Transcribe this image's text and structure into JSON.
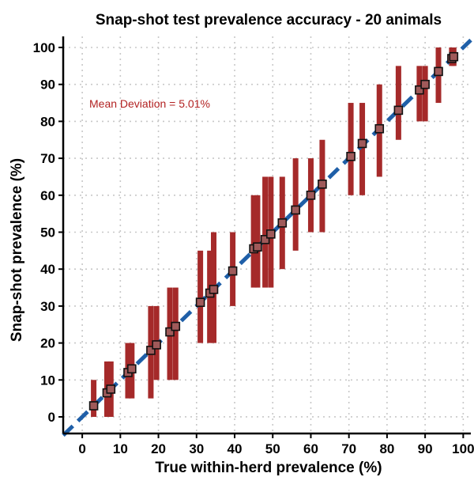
{
  "chart_data": {
    "type": "scatter",
    "title": "Snap-shot test prevalence accuracy - 20 animals",
    "xlabel": "True within-herd prevalence (%)",
    "ylabel": "Snap-shot prevalence (%)",
    "xlim": [
      -5,
      102
    ],
    "ylim": [
      -4.5,
      103
    ],
    "xticks": [
      0,
      10,
      20,
      30,
      40,
      50,
      60,
      70,
      80,
      90,
      100
    ],
    "yticks": [
      0,
      10,
      20,
      30,
      40,
      50,
      60,
      70,
      80,
      90,
      100
    ],
    "xtick_labels": [
      "0",
      "10",
      "20",
      "30",
      "40",
      "50",
      "60",
      "70",
      "80",
      "90",
      "100"
    ],
    "ytick_labels": [
      "0",
      "10",
      "20",
      "30",
      "40",
      "50",
      "60",
      "70",
      "80",
      "90",
      "100"
    ],
    "grid": true,
    "annotation": "Mean Deviation = 5.01%",
    "colors": {
      "bar": "#a52a2a",
      "point_fill": "#a05a5a",
      "point_edge": "#111111",
      "reference_line": "#1f5fa8",
      "annotation": "#b22222",
      "grid": "#c8c8c8"
    },
    "reference_line": {
      "label": "y = x",
      "from": [
        -5,
        -5
      ],
      "to": [
        102,
        102
      ]
    },
    "points": [
      {
        "x": 3,
        "y": 3,
        "low": 0,
        "high": 10
      },
      {
        "x": 6.5,
        "y": 6.5,
        "low": 0,
        "high": 15
      },
      {
        "x": 7.5,
        "y": 7.5,
        "low": 0,
        "high": 15
      },
      {
        "x": 12,
        "y": 12,
        "low": 5,
        "high": 20
      },
      {
        "x": 13,
        "y": 13,
        "low": 5,
        "high": 20
      },
      {
        "x": 18,
        "y": 18,
        "low": 5,
        "high": 30
      },
      {
        "x": 19.5,
        "y": 19.5,
        "low": 10,
        "high": 30
      },
      {
        "x": 23,
        "y": 23,
        "low": 10,
        "high": 35
      },
      {
        "x": 24.5,
        "y": 24.5,
        "low": 10,
        "high": 35
      },
      {
        "x": 31,
        "y": 31,
        "low": 20,
        "high": 45
      },
      {
        "x": 33.5,
        "y": 33.5,
        "low": 20,
        "high": 45
      },
      {
        "x": 34.5,
        "y": 34.5,
        "low": 20,
        "high": 50
      },
      {
        "x": 39.5,
        "y": 39.5,
        "low": 30,
        "high": 50
      },
      {
        "x": 45,
        "y": 45.5,
        "low": 35,
        "high": 60
      },
      {
        "x": 46,
        "y": 46,
        "low": 35,
        "high": 60
      },
      {
        "x": 48,
        "y": 48,
        "low": 35,
        "high": 65
      },
      {
        "x": 49.5,
        "y": 49.5,
        "low": 35,
        "high": 65
      },
      {
        "x": 52.5,
        "y": 52.5,
        "low": 40,
        "high": 65
      },
      {
        "x": 56,
        "y": 56,
        "low": 45,
        "high": 70
      },
      {
        "x": 60,
        "y": 60,
        "low": 50,
        "high": 70
      },
      {
        "x": 63,
        "y": 63,
        "low": 50,
        "high": 75
      },
      {
        "x": 70.5,
        "y": 70.5,
        "low": 60,
        "high": 85
      },
      {
        "x": 73.5,
        "y": 74,
        "low": 60,
        "high": 85
      },
      {
        "x": 78,
        "y": 78,
        "low": 65,
        "high": 90
      },
      {
        "x": 83,
        "y": 83,
        "low": 75,
        "high": 95
      },
      {
        "x": 88.5,
        "y": 88.5,
        "low": 80,
        "high": 95
      },
      {
        "x": 90,
        "y": 90,
        "low": 80,
        "high": 95
      },
      {
        "x": 93.5,
        "y": 93.5,
        "low": 85,
        "high": 100
      },
      {
        "x": 97,
        "y": 97,
        "low": 95,
        "high": 100
      },
      {
        "x": 97.5,
        "y": 97.5,
        "low": 95,
        "high": 100
      }
    ]
  }
}
